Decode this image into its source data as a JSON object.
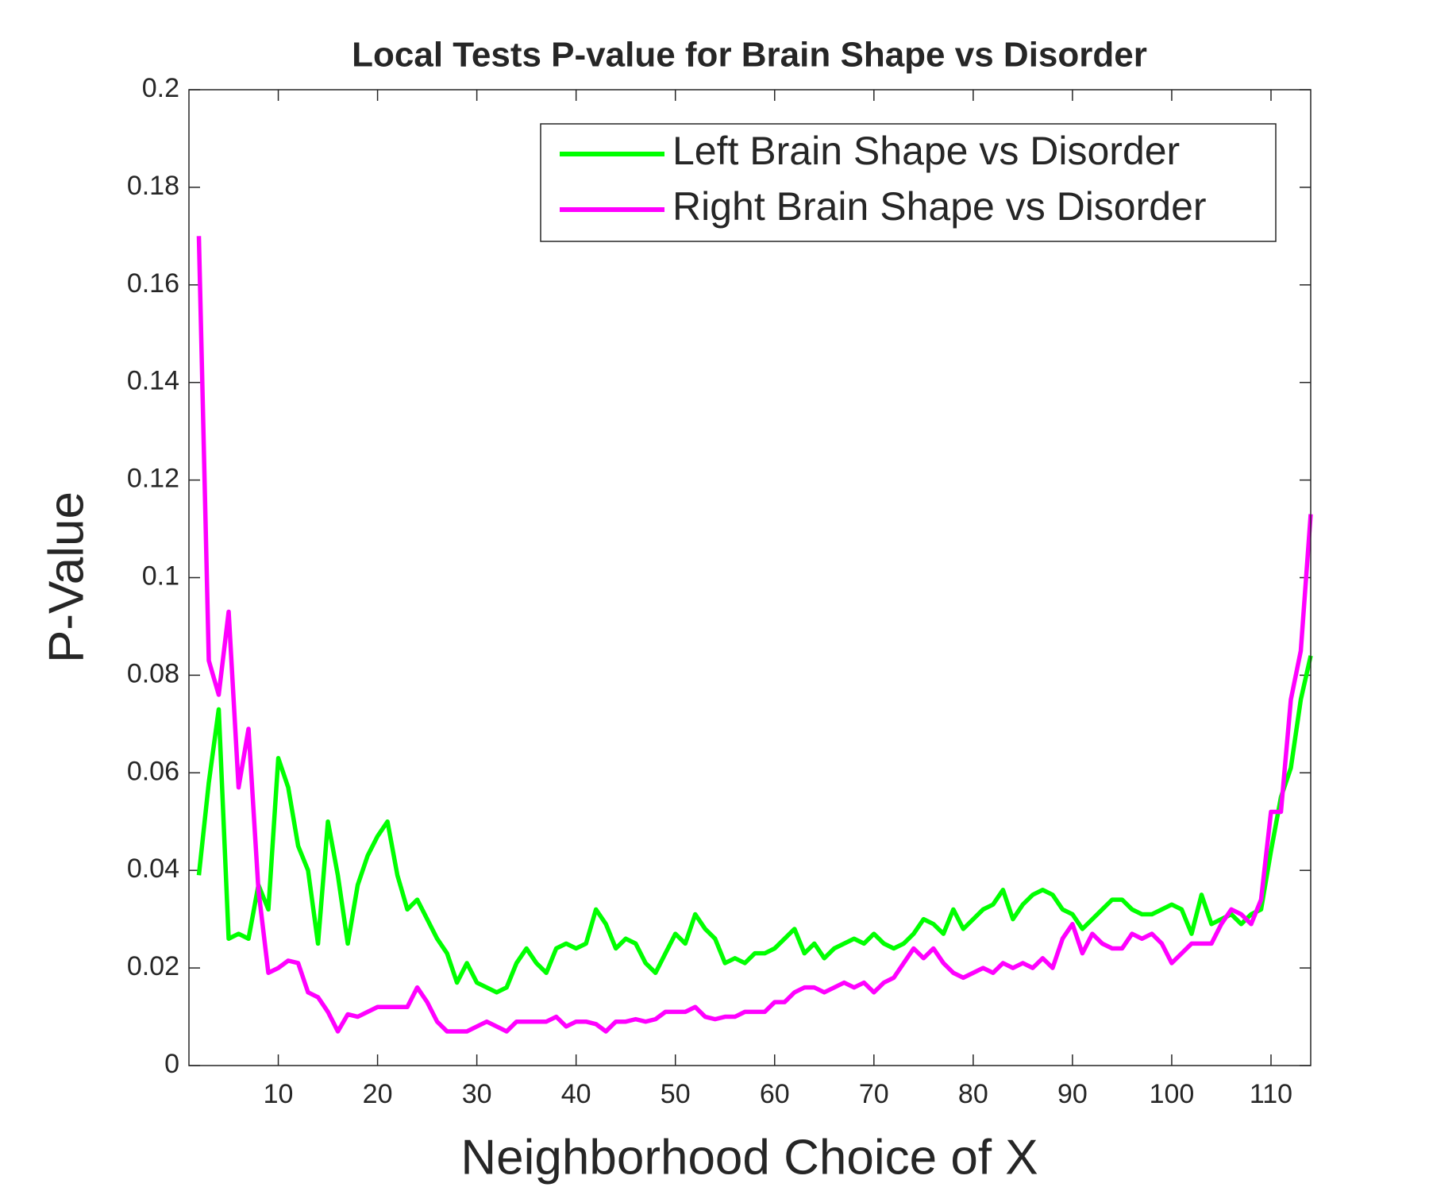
{
  "chart_data": {
    "type": "line",
    "title": "Local Tests P-value for Brain Shape vs Disorder",
    "x_label": "Neighborhood Choice of X",
    "y_label": "P-Value",
    "x": [
      2,
      3,
      4,
      5,
      6,
      7,
      8,
      9,
      10,
      11,
      12,
      13,
      14,
      15,
      16,
      17,
      18,
      19,
      20,
      21,
      22,
      23,
      24,
      25,
      26,
      27,
      28,
      29,
      30,
      31,
      32,
      33,
      34,
      35,
      36,
      37,
      38,
      39,
      40,
      41,
      42,
      43,
      44,
      45,
      46,
      47,
      48,
      49,
      50,
      51,
      52,
      53,
      54,
      55,
      56,
      57,
      58,
      59,
      60,
      61,
      62,
      63,
      64,
      65,
      66,
      67,
      68,
      69,
      70,
      71,
      72,
      73,
      74,
      75,
      76,
      77,
      78,
      79,
      80,
      81,
      82,
      83,
      84,
      85,
      86,
      87,
      88,
      89,
      90,
      91,
      92,
      93,
      94,
      95,
      96,
      97,
      98,
      99,
      100,
      101,
      102,
      103,
      104,
      105,
      106,
      107,
      108,
      109,
      110,
      111,
      112,
      113,
      114
    ],
    "series": [
      {
        "name": "Left Brain Shape vs Disorder",
        "color": "#00ff00",
        "values": [
          0.039,
          0.058,
          0.073,
          0.026,
          0.027,
          0.026,
          0.037,
          0.032,
          0.063,
          0.057,
          0.045,
          0.04,
          0.025,
          0.05,
          0.039,
          0.025,
          0.037,
          0.043,
          0.047,
          0.05,
          0.039,
          0.032,
          0.034,
          0.03,
          0.026,
          0.023,
          0.017,
          0.021,
          0.017,
          0.016,
          0.015,
          0.016,
          0.021,
          0.024,
          0.021,
          0.019,
          0.024,
          0.025,
          0.024,
          0.025,
          0.032,
          0.029,
          0.024,
          0.026,
          0.025,
          0.021,
          0.019,
          0.023,
          0.027,
          0.025,
          0.031,
          0.028,
          0.026,
          0.021,
          0.022,
          0.021,
          0.023,
          0.023,
          0.024,
          0.026,
          0.028,
          0.023,
          0.025,
          0.022,
          0.024,
          0.025,
          0.026,
          0.025,
          0.027,
          0.025,
          0.024,
          0.025,
          0.027,
          0.03,
          0.029,
          0.027,
          0.032,
          0.028,
          0.03,
          0.032,
          0.033,
          0.036,
          0.03,
          0.033,
          0.035,
          0.036,
          0.035,
          0.032,
          0.031,
          0.028,
          0.03,
          0.032,
          0.034,
          0.034,
          0.032,
          0.031,
          0.031,
          0.032,
          0.033,
          0.032,
          0.027,
          0.035,
          0.029,
          0.03,
          0.031,
          0.029,
          0.031,
          0.032,
          0.044,
          0.055,
          0.061,
          0.075,
          0.084
        ]
      },
      {
        "name": "Right Brain Shape vs Disorder",
        "color": "#ff00ff",
        "values": [
          0.17,
          0.083,
          0.076,
          0.093,
          0.057,
          0.069,
          0.036,
          0.019,
          0.02,
          0.0215,
          0.021,
          0.015,
          0.014,
          0.011,
          0.007,
          0.0105,
          0.01,
          0.011,
          0.012,
          0.012,
          0.012,
          0.012,
          0.016,
          0.013,
          0.009,
          0.007,
          0.007,
          0.007,
          0.008,
          0.009,
          0.008,
          0.007,
          0.009,
          0.009,
          0.009,
          0.009,
          0.01,
          0.008,
          0.009,
          0.009,
          0.0085,
          0.007,
          0.009,
          0.009,
          0.0095,
          0.009,
          0.0095,
          0.011,
          0.011,
          0.011,
          0.012,
          0.01,
          0.0095,
          0.01,
          0.01,
          0.011,
          0.011,
          0.011,
          0.013,
          0.013,
          0.015,
          0.016,
          0.016,
          0.015,
          0.016,
          0.017,
          0.016,
          0.017,
          0.015,
          0.017,
          0.018,
          0.021,
          0.024,
          0.022,
          0.024,
          0.021,
          0.019,
          0.018,
          0.019,
          0.02,
          0.019,
          0.021,
          0.02,
          0.021,
          0.02,
          0.022,
          0.02,
          0.026,
          0.029,
          0.023,
          0.027,
          0.025,
          0.024,
          0.024,
          0.027,
          0.026,
          0.027,
          0.025,
          0.021,
          0.023,
          0.025,
          0.025,
          0.025,
          0.029,
          0.032,
          0.031,
          0.029,
          0.034,
          0.052,
          0.052,
          0.075,
          0.085,
          0.113
        ]
      }
    ],
    "xlim": [
      1,
      114
    ],
    "xticks": [
      10,
      20,
      30,
      40,
      50,
      60,
      70,
      80,
      90,
      100,
      110
    ],
    "ylim": [
      0,
      0.2
    ],
    "yticks": [
      0,
      0.02,
      0.04,
      0.06,
      0.08,
      0.1,
      0.12,
      0.14,
      0.16,
      0.18,
      0.2
    ],
    "grid": false,
    "legend": "upper right"
  }
}
